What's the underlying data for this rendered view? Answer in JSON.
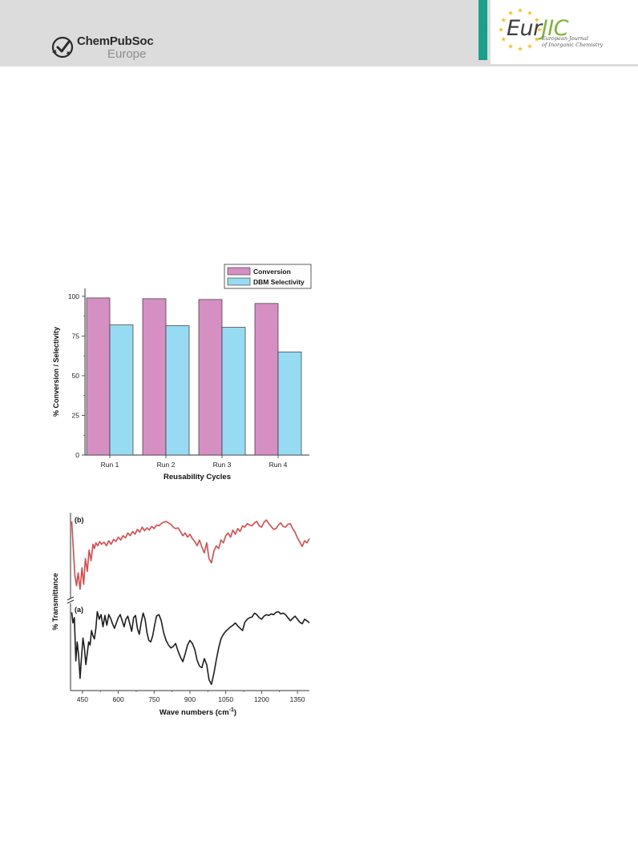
{
  "header": {
    "publisher": {
      "name": "ChemPubSoc",
      "region": "Europe"
    },
    "journal": {
      "name_part1": "Eur",
      "name_part2": "JIC",
      "full_line1": "European Journal",
      "full_line2": "of Inorganic Chemistry"
    }
  },
  "colors": {
    "header_bg": "#dcdcdc",
    "journal_teal": "#18a08c",
    "journal_green": "#7fb43a",
    "conversion": "#d58fc2",
    "selectivity": "#96dbf2",
    "ir_b": "#e0484a",
    "ir_a": "#1e1e1e"
  },
  "chart_data": [
    {
      "type": "bar",
      "categories": [
        "Run 1",
        "Run 2",
        "Run 3",
        "Run 4"
      ],
      "series": [
        {
          "name": "Conversion",
          "values": [
            99,
            98.5,
            98,
            95.5
          ],
          "color": "#d58fc2"
        },
        {
          "name": "DBM Selectivity",
          "values": [
            82,
            81.5,
            80.5,
            65
          ],
          "color": "#96dbf2"
        }
      ],
      "title": "",
      "xlabel": "Reusability Cycles",
      "ylabel": "% Conversion / Selectivity",
      "ylim": [
        0,
        105
      ],
      "yticks": [
        0,
        25,
        50,
        75,
        100
      ],
      "legend_position": "top-right, above plot",
      "grid": false
    },
    {
      "type": "line",
      "title": "",
      "xlabel": "Wave numbers (cm-1)",
      "xlabel_base": "Wave numbers (cm",
      "xlabel_sup": "-1",
      "xlabel_close": ")",
      "ylabel": "% Transmittance",
      "xlim": [
        400,
        1400
      ],
      "xticks": [
        450,
        600,
        750,
        900,
        1050,
        1200,
        1350
      ],
      "grid": false,
      "axis_break": true,
      "series": [
        {
          "name": "(b)",
          "color": "#e0484a",
          "x": [
            405,
            410,
            418,
            425,
            432,
            440,
            448,
            455,
            462,
            470,
            478,
            486,
            494,
            500,
            506,
            514,
            522,
            530,
            540,
            550,
            560,
            570,
            580,
            590,
            600,
            610,
            620,
            630,
            640,
            650,
            660,
            670,
            680,
            690,
            700,
            710,
            720,
            730,
            740,
            750,
            760,
            770,
            780,
            790,
            800,
            810,
            820,
            830,
            840,
            850,
            860,
            870,
            880,
            890,
            900,
            910,
            920,
            930,
            940,
            950,
            960,
            970,
            980,
            990,
            1000,
            1010,
            1020,
            1030,
            1040,
            1050,
            1060,
            1070,
            1080,
            1090,
            1100,
            1110,
            1120,
            1130,
            1140,
            1150,
            1160,
            1170,
            1180,
            1190,
            1200,
            1210,
            1220,
            1230,
            1240,
            1250,
            1260,
            1270,
            1280,
            1290,
            1300,
            1310,
            1320,
            1330,
            1340,
            1350,
            1360,
            1370,
            1380,
            1390,
            1400
          ],
          "y": [
            100,
            70,
            25,
            10,
            28,
            5,
            35,
            12,
            48,
            30,
            60,
            45,
            68,
            62,
            70,
            66,
            72,
            68,
            71,
            66,
            73,
            68,
            75,
            72,
            78,
            74,
            80,
            77,
            84,
            80,
            86,
            82,
            89,
            85,
            92,
            87,
            91,
            88,
            93,
            90,
            95,
            94,
            97,
            99,
            100,
            98,
            96,
            92,
            90,
            91,
            86,
            80,
            84,
            78,
            82,
            76,
            72,
            66,
            74,
            64,
            56,
            70,
            48,
            42,
            58,
            66,
            62,
            74,
            70,
            80,
            84,
            78,
            88,
            82,
            90,
            86,
            94,
            92,
            97,
            95,
            94,
            98,
            100,
            94,
            92,
            99,
            102,
            97,
            93,
            89,
            90,
            95,
            98,
            93,
            92,
            96,
            97,
            90,
            85,
            77,
            71,
            65,
            73,
            70,
            76
          ],
          "ylim": [
            0,
            110
          ]
        },
        {
          "name": "(a)",
          "color": "#1e1e1e",
          "x": [
            405,
            410,
            416,
            422,
            428,
            434,
            440,
            446,
            452,
            458,
            464,
            470,
            476,
            482,
            488,
            494,
            500,
            506,
            512,
            520,
            528,
            536,
            544,
            552,
            560,
            568,
            576,
            584,
            592,
            600,
            608,
            616,
            624,
            632,
            640,
            648,
            656,
            664,
            672,
            680,
            688,
            696,
            704,
            712,
            720,
            728,
            736,
            744,
            752,
            760,
            770,
            780,
            790,
            800,
            810,
            820,
            830,
            840,
            850,
            860,
            870,
            880,
            890,
            900,
            910,
            920,
            930,
            940,
            950,
            960,
            970,
            980,
            990,
            1000,
            1010,
            1020,
            1030,
            1040,
            1050,
            1060,
            1070,
            1080,
            1090,
            1100,
            1110,
            1120,
            1130,
            1140,
            1150,
            1160,
            1170,
            1180,
            1190,
            1200,
            1210,
            1220,
            1230,
            1240,
            1250,
            1260,
            1270,
            1280,
            1290,
            1300,
            1310,
            1320,
            1330,
            1340,
            1350,
            1360,
            1370,
            1380,
            1390,
            1400
          ],
          "y": [
            99,
            85,
            92,
            35,
            60,
            42,
            12,
            40,
            65,
            52,
            30,
            45,
            60,
            56,
            75,
            68,
            64,
            78,
            100,
            90,
            96,
            80,
            95,
            82,
            96,
            91,
            84,
            78,
            85,
            92,
            96,
            88,
            80,
            90,
            94,
            84,
            74,
            92,
            95,
            78,
            70,
            86,
            98,
            90,
            72,
            62,
            60,
            68,
            82,
            94,
            96,
            88,
            72,
            62,
            56,
            52,
            54,
            58,
            48,
            40,
            34,
            44,
            56,
            62,
            58,
            50,
            36,
            28,
            26,
            38,
            30,
            10,
            4,
            18,
            36,
            52,
            64,
            70,
            74,
            77,
            80,
            82,
            85,
            81,
            78,
            75,
            86,
            90,
            92,
            93,
            98,
            96,
            92,
            90,
            94,
            96,
            95,
            97,
            96,
            99,
            100,
            97,
            98,
            96,
            92,
            88,
            91,
            94,
            90,
            86,
            84,
            90,
            88,
            85
          ],
          "ylim": [
            0,
            110
          ]
        }
      ]
    }
  ]
}
